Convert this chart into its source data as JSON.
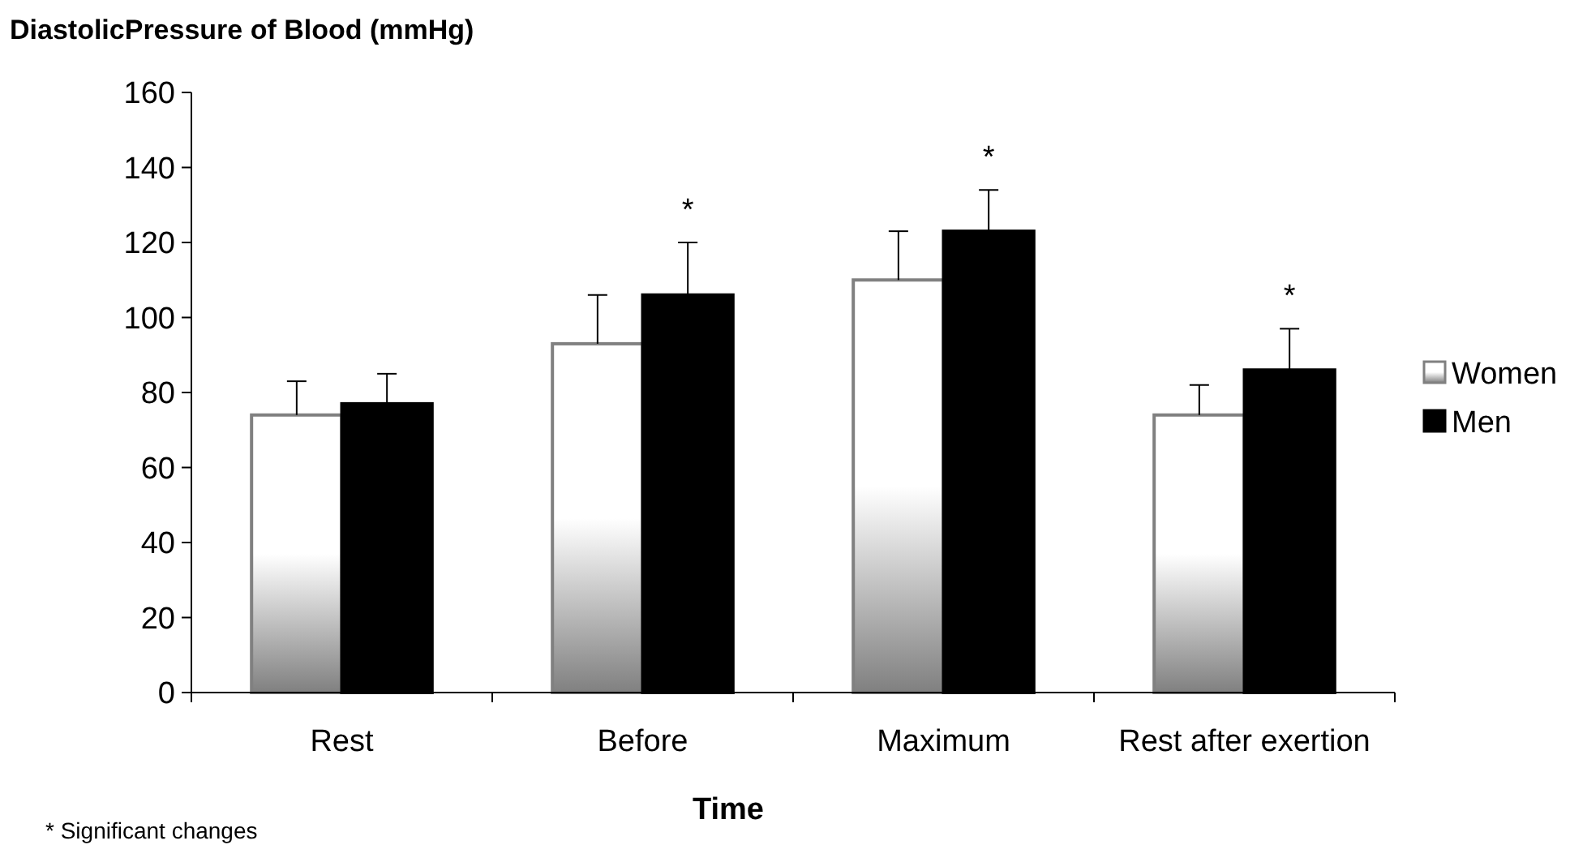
{
  "chart_data": {
    "type": "bar",
    "title": "DiastolicPressure of Blood (mmHg)",
    "xlabel": "Time",
    "categories": [
      "Rest",
      "Before",
      "Maximum",
      "Rest after exertion"
    ],
    "series": [
      {
        "name": "Women",
        "color": "#808080",
        "values": [
          74,
          93,
          110,
          74
        ],
        "errors": [
          [
            74,
            83
          ],
          [
            93,
            106
          ],
          [
            110,
            123
          ],
          [
            74,
            82
          ]
        ]
      },
      {
        "name": "Men",
        "color": "#000000",
        "values": [
          77,
          106,
          123,
          86
        ],
        "errors": [
          [
            77,
            85
          ],
          [
            106,
            120
          ],
          [
            123,
            134
          ],
          [
            86,
            97
          ]
        ]
      }
    ],
    "ylim": [
      0,
      160
    ],
    "yticks": [
      0,
      20,
      40,
      60,
      80,
      100,
      120,
      140,
      160
    ],
    "grid": false,
    "legend": "right",
    "annotations": [
      "*",
      "*",
      "*",
      "* Significant changes"
    ]
  }
}
